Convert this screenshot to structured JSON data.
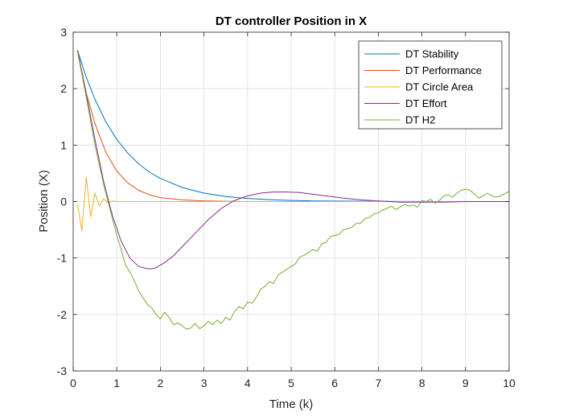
{
  "chart_data": {
    "type": "line",
    "title": "DT controller Position in X",
    "xlabel": "Time (k)",
    "ylabel": "Position (X)",
    "xlim": [
      0,
      10
    ],
    "ylim": [
      -3,
      3
    ],
    "xticks": [
      0,
      1,
      2,
      3,
      4,
      5,
      6,
      7,
      8,
      9,
      10
    ],
    "yticks": [
      3,
      2,
      1,
      0,
      -1,
      -2,
      -3
    ],
    "grid": true,
    "legend_position": "top-right",
    "series": [
      {
        "name": "DT Stability",
        "color": "#0072BD",
        "x": [
          0.1,
          0.3,
          0.5,
          0.75,
          1.0,
          1.25,
          1.5,
          1.75,
          2.0,
          2.5,
          3.0,
          3.5,
          4.0,
          4.5,
          5.0,
          5.5,
          6.0,
          7.0,
          8.0,
          9.0,
          10.0
        ],
        "y": [
          2.68,
          2.2,
          1.81,
          1.41,
          1.1,
          0.86,
          0.67,
          0.52,
          0.41,
          0.25,
          0.15,
          0.09,
          0.055,
          0.034,
          0.02,
          0.012,
          0.008,
          0.003,
          0.001,
          0.0,
          0.0
        ]
      },
      {
        "name": "DT Performance",
        "color": "#D95319",
        "x": [
          0.1,
          0.3,
          0.5,
          0.75,
          1.0,
          1.25,
          1.5,
          1.75,
          2.0,
          2.5,
          3.0,
          3.5,
          4.0,
          5.0,
          6.0,
          8.0,
          10.0
        ],
        "y": [
          2.68,
          1.92,
          1.38,
          0.87,
          0.54,
          0.33,
          0.2,
          0.12,
          0.07,
          0.03,
          0.01,
          0.005,
          0.0,
          0.0,
          0.0,
          0.0,
          0.0
        ]
      },
      {
        "name": "DT Circle Area",
        "color": "#EDB120",
        "x": [
          0.1,
          0.2,
          0.3,
          0.4,
          0.5,
          0.6,
          0.7,
          0.8,
          0.9,
          1.0,
          1.5,
          2.0,
          3.0,
          4.0,
          5.0,
          6.0,
          7.0,
          8.0,
          9.0,
          10.0
        ],
        "y": [
          -0.05,
          -0.52,
          0.43,
          -0.27,
          0.15,
          -0.08,
          0.05,
          -0.02,
          0.01,
          0.0,
          0.0,
          0.0,
          0.0,
          0.0,
          0.0,
          0.0,
          0.0,
          0.0,
          0.0,
          0.0
        ]
      },
      {
        "name": "DT Effort",
        "color": "#7E2F8E",
        "x": [
          0.1,
          0.3,
          0.5,
          0.7,
          0.9,
          1.1,
          1.3,
          1.5,
          1.7,
          1.8,
          1.9,
          2.1,
          2.3,
          2.5,
          2.8,
          3.1,
          3.4,
          3.7,
          4.0,
          4.3,
          4.6,
          4.9,
          5.2,
          5.5,
          5.8,
          6.2,
          6.6,
          7.0,
          7.5,
          8.0,
          8.5,
          9.0,
          10.0
        ],
        "y": [
          2.68,
          1.9,
          1.1,
          0.35,
          -0.25,
          -0.7,
          -1.0,
          -1.15,
          -1.19,
          -1.19,
          -1.17,
          -1.08,
          -0.96,
          -0.8,
          -0.56,
          -0.32,
          -0.12,
          0.02,
          0.1,
          0.15,
          0.17,
          0.17,
          0.16,
          0.13,
          0.1,
          0.06,
          0.03,
          0.01,
          -0.01,
          -0.01,
          -0.01,
          0.0,
          0.0
        ]
      },
      {
        "name": "DT H2",
        "color": "#77AC30",
        "x": [
          0.1,
          0.3,
          0.5,
          0.7,
          0.9,
          1.0,
          1.1,
          1.2,
          1.3,
          1.4,
          1.5,
          1.6,
          1.7,
          1.8,
          1.9,
          2.0,
          2.1,
          2.2,
          2.3,
          2.4,
          2.5,
          2.6,
          2.7,
          2.8,
          2.9,
          3.0,
          3.1,
          3.2,
          3.3,
          3.4,
          3.5,
          3.6,
          3.7,
          3.8,
          3.9,
          4.0,
          4.1,
          4.2,
          4.3,
          4.4,
          4.5,
          4.6,
          4.7,
          4.8,
          4.9,
          5.0,
          5.1,
          5.2,
          5.3,
          5.4,
          5.5,
          5.6,
          5.7,
          5.8,
          5.9,
          6.0,
          6.1,
          6.2,
          6.3,
          6.4,
          6.5,
          6.6,
          6.7,
          6.8,
          6.9,
          7.0,
          7.1,
          7.2,
          7.3,
          7.4,
          7.5,
          7.6,
          7.7,
          7.8,
          7.9,
          8.0,
          8.1,
          8.2,
          8.3,
          8.4,
          8.5,
          8.6,
          8.7,
          8.8,
          8.9,
          9.0,
          9.1,
          9.2,
          9.3,
          9.4,
          9.5,
          9.6,
          9.7,
          9.8,
          9.9,
          10.0
        ],
        "y": [
          2.65,
          1.85,
          1.0,
          0.3,
          -0.3,
          -0.6,
          -0.85,
          -1.12,
          -1.25,
          -1.4,
          -1.58,
          -1.7,
          -1.82,
          -1.88,
          -2.0,
          -2.08,
          -1.96,
          -2.05,
          -2.18,
          -2.15,
          -2.2,
          -2.26,
          -2.24,
          -2.16,
          -2.25,
          -2.2,
          -2.12,
          -2.18,
          -2.1,
          -2.16,
          -2.05,
          -2.1,
          -1.95,
          -1.86,
          -1.9,
          -1.78,
          -1.8,
          -1.7,
          -1.55,
          -1.5,
          -1.42,
          -1.45,
          -1.3,
          -1.25,
          -1.2,
          -1.15,
          -1.1,
          -0.98,
          -0.95,
          -0.9,
          -0.85,
          -0.88,
          -0.75,
          -0.72,
          -0.62,
          -0.6,
          -0.58,
          -0.5,
          -0.48,
          -0.45,
          -0.38,
          -0.38,
          -0.3,
          -0.28,
          -0.22,
          -0.2,
          -0.15,
          -0.12,
          -0.08,
          -0.14,
          -0.1,
          -0.05,
          -0.08,
          -0.06,
          -0.1,
          0.02,
          0.0,
          0.04,
          -0.03,
          0.02,
          0.1,
          0.12,
          0.08,
          0.15,
          0.2,
          0.22,
          0.2,
          0.14,
          0.06,
          0.1,
          0.15,
          0.1,
          0.08,
          0.1,
          0.14,
          0.18
        ]
      }
    ]
  }
}
